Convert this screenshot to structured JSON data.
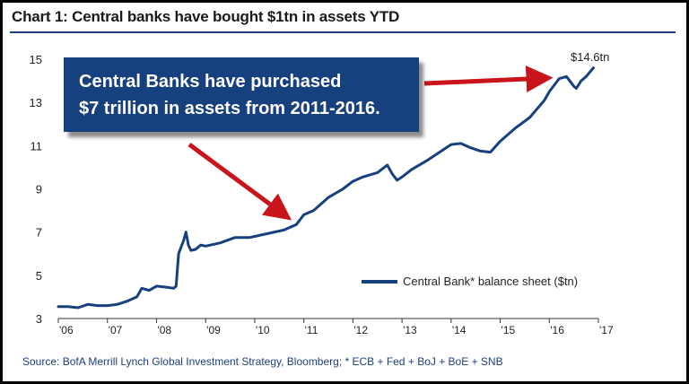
{
  "title": "Chart 1:  Central banks have bought $1tn in assets YTD",
  "source": "Source: BofA Merrill Lynch Global Investment Strategy, Bloomberg; * ECB + Fed + BoJ + BoE + SNB",
  "callout": {
    "line1": "Central Banks have purchased",
    "line2": "$7 trillion in assets from 2011-2016."
  },
  "colors": {
    "series": "#17407e",
    "arrow": "#c8141a",
    "callout_bg": "#17407e"
  },
  "chart_data": {
    "type": "line",
    "title": "Chart 1:  Central banks have bought $1tn in assets YTD",
    "xlabel": "",
    "ylabel": "",
    "xlim": [
      2006,
      2017
    ],
    "ylim": [
      3,
      15
    ],
    "x_ticks": [
      "'06",
      "'07",
      "'08",
      "'09",
      "'10",
      "'11",
      "'12",
      "'13",
      "'14",
      "'15",
      "'16",
      "'17"
    ],
    "y_ticks": [
      3,
      5,
      7,
      9,
      11,
      13,
      15
    ],
    "grid": false,
    "legend_position": "bottom-right",
    "end_label": "$14.6tn",
    "series": [
      {
        "name": "Central Bank* balance sheet ($tn)",
        "x": [
          2006.0,
          2006.2,
          2006.4,
          2006.6,
          2006.8,
          2007.0,
          2007.2,
          2007.4,
          2007.6,
          2007.7,
          2007.85,
          2008.0,
          2008.2,
          2008.35,
          2008.4,
          2008.45,
          2008.5,
          2008.55,
          2008.6,
          2008.65,
          2008.7,
          2008.8,
          2008.9,
          2009.0,
          2009.3,
          2009.6,
          2009.9,
          2010.0,
          2010.3,
          2010.6,
          2010.85,
          2011.0,
          2011.2,
          2011.5,
          2011.8,
          2012.0,
          2012.2,
          2012.5,
          2012.7,
          2012.8,
          2012.9,
          2013.0,
          2013.2,
          2013.5,
          2013.8,
          2014.0,
          2014.2,
          2014.4,
          2014.6,
          2014.8,
          2015.0,
          2015.3,
          2015.6,
          2015.9,
          2016.0,
          2016.2,
          2016.35,
          2016.5,
          2016.55,
          2016.65,
          2016.75,
          2016.9
        ],
        "y": [
          3.55,
          3.55,
          3.5,
          3.65,
          3.6,
          3.6,
          3.65,
          3.8,
          4.0,
          4.4,
          4.3,
          4.5,
          4.45,
          4.4,
          4.5,
          6.0,
          6.3,
          6.6,
          7.0,
          6.4,
          6.15,
          6.2,
          6.4,
          6.35,
          6.5,
          6.75,
          6.75,
          6.8,
          6.95,
          7.1,
          7.35,
          7.8,
          8.0,
          8.6,
          9.0,
          9.35,
          9.55,
          9.75,
          10.1,
          9.7,
          9.4,
          9.55,
          9.9,
          10.3,
          10.75,
          11.05,
          11.1,
          10.9,
          10.75,
          10.7,
          11.2,
          11.8,
          12.3,
          13.1,
          13.5,
          14.1,
          14.2,
          13.75,
          13.65,
          14.0,
          14.2,
          14.6
        ]
      }
    ]
  }
}
